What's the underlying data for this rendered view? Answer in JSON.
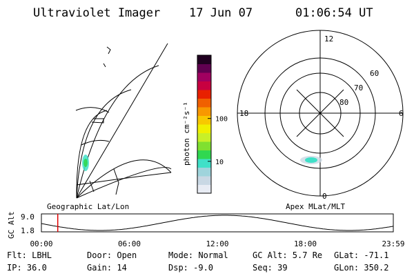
{
  "header": {
    "instrument": "Ultraviolet Imager",
    "date": "17 Jun 07",
    "time": "01:06:54 UT"
  },
  "colorbar": {
    "unit_label": "photon cm⁻²s⁻¹",
    "ticks": [
      {
        "label": "100",
        "value": 100
      },
      {
        "label": "10",
        "value": 10
      }
    ],
    "colors": [
      "#e8ecf4",
      "#c9d8e4",
      "#9fd4dc",
      "#40e0c8",
      "#30d850",
      "#80e030",
      "#c8f028",
      "#f0f000",
      "#f8c800",
      "#f89800",
      "#f06000",
      "#e82000",
      "#c80040",
      "#a00060",
      "#600050",
      "#200020"
    ]
  },
  "geo_panel": {
    "caption": "Geographic Lat/Lon"
  },
  "polar_panel": {
    "caption": "Apex MLat/MLT",
    "mlt_labels": {
      "top": "12",
      "left": "18",
      "right": "6",
      "bottom": "0"
    },
    "lat_labels": [
      "60",
      "70",
      "80"
    ]
  },
  "orbit": {
    "ylabel": "GC Alt",
    "yticks": [
      "9.0",
      "1.8"
    ],
    "xticks": [
      "00:00",
      "06:00",
      "12:00",
      "18:00",
      "23:59"
    ],
    "marker_time_hours": 1.115
  },
  "info": {
    "flt": "Flt: LBHL",
    "ip": "IP: 36.0",
    "door": "Door: Open",
    "gain": "Gain: 14",
    "mode": "Mode: Normal",
    "dsp": "Dsp:   -9.0",
    "gcalt": "GC Alt: 5.7 Re",
    "seq": "Seq: 39",
    "glat": "GLat: -71.1",
    "glon": "GLon: 350.2"
  }
}
